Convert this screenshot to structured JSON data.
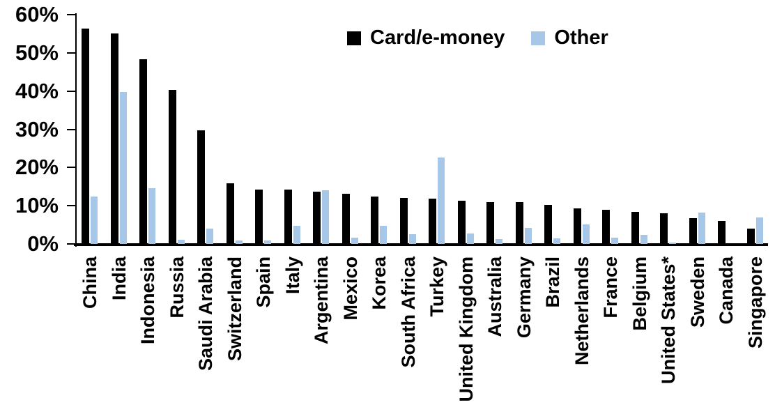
{
  "chart_data": {
    "type": "bar",
    "title": "",
    "xlabel": "",
    "ylabel": "",
    "ylim": [
      0,
      60
    ],
    "ytick_step": 10,
    "ytick_labels": [
      "0%",
      "10%",
      "20%",
      "30%",
      "40%",
      "50%",
      "60%"
    ],
    "grid": false,
    "legend_position": "top-center",
    "categories": [
      "China",
      "India",
      "Indonesia",
      "Russia",
      "Saudi Arabia",
      "Switzerland",
      "Spain",
      "Italy",
      "Argentina",
      "Mexico",
      "Korea",
      "South Africa",
      "Turkey",
      "United Kingdom",
      "Australia",
      "Germany",
      "Brazil",
      "Netherlands",
      "France",
      "Belgium",
      "United States*",
      "Sweden",
      "Canada",
      "Singapore"
    ],
    "series": [
      {
        "name": "Card/e-money",
        "color": "#000000",
        "values": [
          56.3,
          55.0,
          48.3,
          40.4,
          29.8,
          15.8,
          14.3,
          14.2,
          13.6,
          13.1,
          12.4,
          12.0,
          11.9,
          11.3,
          11.0,
          10.9,
          10.3,
          9.4,
          8.9,
          8.4,
          8.1,
          6.7,
          6.1,
          4.0
        ]
      },
      {
        "name": "Other",
        "color": "#A6C7E7",
        "values": [
          12.5,
          39.8,
          14.6,
          1.1,
          4.0,
          0.9,
          1.0,
          4.8,
          14.1,
          1.6,
          4.7,
          2.6,
          22.6,
          2.7,
          1.2,
          4.2,
          1.5,
          5.1,
          1.7,
          2.3,
          0.4,
          8.3,
          0,
          6.9
        ]
      }
    ]
  },
  "colors": {
    "card_series": "#000000",
    "other_series": "#A6C7E7",
    "axis": "#000000",
    "background": "#ffffff"
  }
}
